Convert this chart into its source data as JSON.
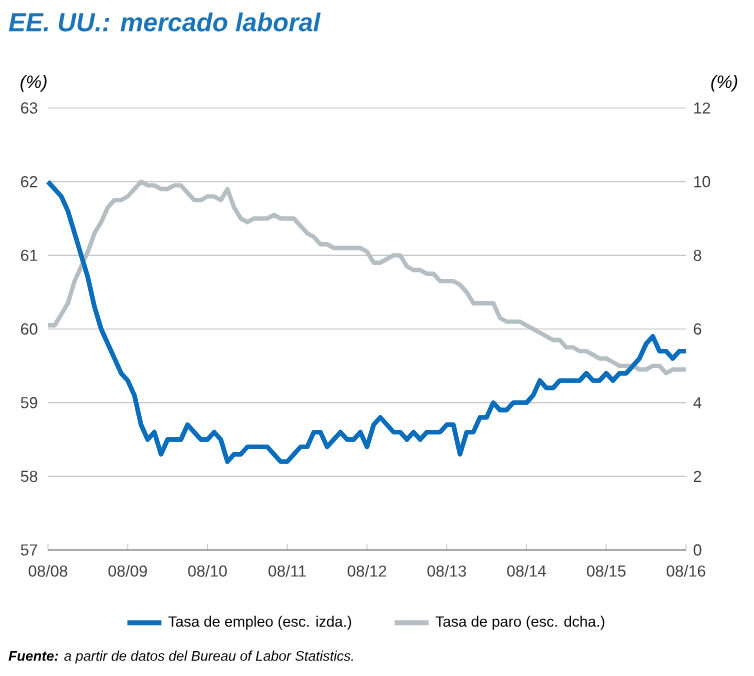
{
  "chart_data": {
    "type": "line",
    "title": "EE. UU.: mercado laboral",
    "ylabel": "(%)",
    "y2label": "(%)",
    "annotations": [
      "**Fuente:** a partir de datos del Bureau of Labor Statistics."
    ],
    "x": [
      "2008-08",
      "2008-09",
      "2008-10",
      "2008-11",
      "2008-12",
      "2009-01",
      "2009-02",
      "2009-03",
      "2009-04",
      "2009-05",
      "2009-06",
      "2009-07",
      "2009-08",
      "2009-09",
      "2009-10",
      "2009-11",
      "2009-12",
      "2010-01",
      "2010-02",
      "2010-03",
      "2010-04",
      "2010-05",
      "2010-06",
      "2010-07",
      "2010-08",
      "2010-09",
      "2010-10",
      "2010-11",
      "2010-12",
      "2011-01",
      "2011-02",
      "2011-03",
      "2011-04",
      "2011-05",
      "2011-06",
      "2011-07",
      "2011-08",
      "2011-09",
      "2011-10",
      "2011-11",
      "2011-12",
      "2012-01",
      "2012-02",
      "2012-03",
      "2012-04",
      "2012-05",
      "2012-06",
      "2012-07",
      "2012-08",
      "2012-09",
      "2012-10",
      "2012-11",
      "2012-12",
      "2013-01",
      "2013-02",
      "2013-03",
      "2013-04",
      "2013-05",
      "2013-06",
      "2013-07",
      "2013-08",
      "2013-09",
      "2013-10",
      "2013-11",
      "2013-12",
      "2014-01",
      "2014-02",
      "2014-03",
      "2014-04",
      "2014-05",
      "2014-06",
      "2014-07",
      "2014-08",
      "2014-09",
      "2014-10",
      "2014-11",
      "2014-12",
      "2015-01",
      "2015-02",
      "2015-03",
      "2015-04",
      "2015-05",
      "2015-06",
      "2015-07",
      "2015-08",
      "2015-09",
      "2015-10",
      "2015-11",
      "2015-12",
      "2016-01",
      "2016-02",
      "2016-03",
      "2016-04",
      "2016-05",
      "2016-06",
      "2016-07",
      "2016-08"
    ],
    "series": [
      {
        "name": "Tasa de empleo (esc. izda.)",
        "color": "#0a6ebd",
        "values": [
          62.0,
          61.9,
          61.8,
          61.6,
          61.3,
          61.0,
          60.7,
          60.3,
          60.0,
          59.8,
          59.6,
          59.4,
          59.3,
          59.1,
          58.7,
          58.5,
          58.6,
          58.3,
          58.5,
          58.5,
          58.5,
          58.7,
          58.6,
          58.5,
          58.5,
          58.6,
          58.5,
          58.2,
          58.3,
          58.3,
          58.4,
          58.4,
          58.4,
          58.4,
          58.3,
          58.2,
          58.2,
          58.3,
          58.4,
          58.4,
          58.6,
          58.6,
          58.4,
          58.5,
          58.6,
          58.5,
          58.5,
          58.6,
          58.4,
          58.7,
          58.8,
          58.7,
          58.6,
          58.6,
          58.5,
          58.6,
          58.5,
          58.6,
          58.6,
          58.6,
          58.7,
          58.7,
          58.3,
          58.6,
          58.6,
          58.8,
          58.8,
          59.0,
          58.9,
          58.9,
          59.0,
          59.0,
          59.0,
          59.1,
          59.3,
          59.2,
          59.2,
          59.3,
          59.3,
          59.3,
          59.3,
          59.4,
          59.3,
          59.3,
          59.4,
          59.3,
          59.4,
          59.4,
          59.5,
          59.6,
          59.8,
          59.9,
          59.7,
          59.7,
          59.6,
          59.7,
          59.7
        ]
      },
      {
        "name": "Tasa de paro (esc. dcha.)",
        "color": "#b4bec3",
        "axis": "y2",
        "values": [
          6.1,
          6.1,
          6.4,
          6.7,
          7.3,
          7.7,
          8.1,
          8.6,
          8.9,
          9.3,
          9.5,
          9.5,
          9.6,
          9.8,
          10.0,
          9.9,
          9.9,
          9.8,
          9.8,
          9.9,
          9.9,
          9.7,
          9.5,
          9.5,
          9.6,
          9.6,
          9.5,
          9.8,
          9.3,
          9.0,
          8.9,
          9.0,
          9.0,
          9.0,
          9.1,
          9.0,
          9.0,
          9.0,
          8.8,
          8.6,
          8.5,
          8.3,
          8.3,
          8.2,
          8.2,
          8.2,
          8.2,
          8.2,
          8.1,
          7.8,
          7.8,
          7.9,
          8.0,
          8.0,
          7.7,
          7.6,
          7.6,
          7.5,
          7.5,
          7.3,
          7.3,
          7.3,
          7.2,
          7.0,
          6.7,
          6.7,
          6.7,
          6.7,
          6.3,
          6.2,
          6.2,
          6.2,
          6.1,
          6.0,
          5.9,
          5.8,
          5.7,
          5.7,
          5.5,
          5.5,
          5.4,
          5.4,
          5.3,
          5.2,
          5.2,
          5.1,
          5.0,
          5.0,
          5.0,
          4.9,
          4.9,
          5.0,
          5.0,
          4.8,
          4.9,
          4.9,
          4.9
        ]
      }
    ],
    "xlim": [
      "2008-08",
      "2016-08"
    ],
    "xticks": [
      {
        "value": "2008-08",
        "label": "08/08"
      },
      {
        "value": "2009-08",
        "label": "08/09"
      },
      {
        "value": "2010-08",
        "label": "08/10"
      },
      {
        "value": "2011-08",
        "label": "08/11"
      },
      {
        "value": "2012-08",
        "label": "08/12"
      },
      {
        "value": "2013-08",
        "label": "08/13"
      },
      {
        "value": "2014-08",
        "label": "08/14"
      },
      {
        "value": "2015-08",
        "label": "08/15"
      },
      {
        "value": "2016-08",
        "label": "08/16"
      }
    ],
    "ylim": [
      57,
      63
    ],
    "yticks": [
      57,
      58,
      59,
      60,
      61,
      62,
      63
    ],
    "y2lim": [
      0,
      12
    ],
    "y2ticks": [
      0,
      2,
      4,
      6,
      8,
      10,
      12
    ],
    "grid": "y",
    "legend": "bottom",
    "line_style": "solid"
  }
}
